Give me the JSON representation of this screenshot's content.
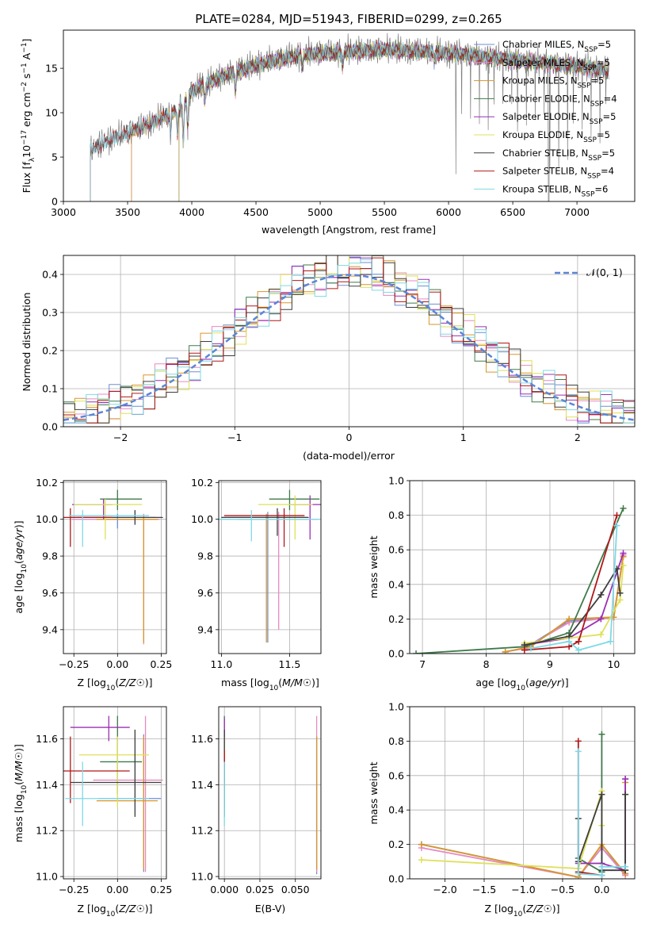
{
  "figure_title": "PLATE=0284, MJD=51943, FIBERID=0299, z=0.265",
  "colors": {
    "Chabrier MILES": "#6b8fd6",
    "Salpeter MILES": "#e58bc0",
    "Kroupa MILES": "#d9962a",
    "Chabrier ELODIE": "#3f7a4a",
    "Salpeter ELODIE": "#9b2fb5",
    "Kroupa ELODIE": "#dfe05a",
    "Chabrier STELIB": "#3d3d3d",
    "Salpeter STELIB": "#b01818",
    "Kroupa STELIB": "#7fd9e6",
    "dashed": "#5b86d8",
    "observed": "#808080",
    "model_orange": "#e07a3a"
  },
  "chart_data": [
    {
      "id": "spectrum",
      "type": "line",
      "title": "PLATE=0284, MJD=51943, FIBERID=0299, z=0.265",
      "xlabel": "wavelength [Angstrom, rest frame]",
      "ylabel": "Flux [fλ10⁻¹⁷ erg cm⁻² s⁻¹ A⁻¹]",
      "xlim": [
        3000,
        7450
      ],
      "ylim": [
        0,
        19.3
      ],
      "xticks": [
        3000,
        3500,
        4000,
        4500,
        5000,
        5500,
        6000,
        6500,
        7000
      ],
      "yticks": [
        0,
        5,
        10,
        15
      ],
      "grid": false,
      "legend_position": "right",
      "legend": [
        "Chabrier MILES, N_SSP=5",
        "Salpeter MILES, N_SSP=5",
        "Kroupa MILES, N_SSP=5",
        "Chabrier ELODIE, N_SSP=4",
        "Salpeter ELODIE, N_SSP=5",
        "Kroupa ELODIE, N_SSP=5",
        "Chabrier STELIB, N_SSP=5",
        "Salpeter STELIB, N_SSP=4",
        "Kroupa STELIB, N_SSP=6"
      ],
      "observed_range": [
        3210,
        7250
      ],
      "continuum": [
        [
          3210,
          5.8
        ],
        [
          3350,
          7.0
        ],
        [
          3500,
          7.8
        ],
        [
          3700,
          9.0
        ],
        [
          3900,
          10.5
        ],
        [
          4000,
          12.5
        ],
        [
          4200,
          14.0
        ],
        [
          4500,
          15.5
        ],
        [
          4800,
          16.5
        ],
        [
          5000,
          16.8
        ],
        [
          5500,
          17.2
        ],
        [
          6000,
          16.8
        ],
        [
          6500,
          16.0
        ],
        [
          7000,
          15.3
        ],
        [
          7250,
          14.8
        ]
      ],
      "model_starts": {
        "MILES": 3530,
        "ELODIE": 3900,
        "STELIB": 3210
      }
    },
    {
      "id": "residuals",
      "type": "histogram",
      "xlabel": "(data-model)/error",
      "ylabel": "Normed distribution",
      "xlim": [
        -2.5,
        2.5
      ],
      "ylim": [
        0,
        0.45
      ],
      "xticks": [
        -2,
        -1,
        0,
        1,
        2
      ],
      "yticks": [
        0.0,
        0.1,
        0.2,
        0.3,
        0.4
      ],
      "grid": true,
      "legend": [
        "𝒩(0, 1)"
      ],
      "legend_position": "top-right",
      "bin_width": 0.1
    },
    {
      "id": "age_vs_Z",
      "type": "errorbar",
      "xlabel": "Z [log₁₀(Z/Z☉)]",
      "ylabel": "age  [log₁₀(age/yr)]",
      "xlim": [
        -0.31,
        0.28
      ],
      "ylim": [
        9.27,
        10.21
      ],
      "xticks": [
        -0.25,
        0.0,
        0.25
      ],
      "xtick_labels": [
        "−0.25",
        "0.00",
        "0.25"
      ],
      "yticks": [
        9.4,
        9.6,
        9.8,
        10.0,
        10.2
      ],
      "grid": true,
      "points": [
        {
          "model": "Chabrier MILES",
          "x": 0.0,
          "xerr": [
            0.23,
            0.22
          ],
          "y": 10.01,
          "yerr": [
            0.06,
            0.02
          ]
        },
        {
          "model": "Salpeter MILES",
          "x": 0.15,
          "xerr": [
            0.41,
            0.09
          ],
          "y": 10.0,
          "yerr": [
            0.68,
            0.03
          ]
        },
        {
          "model": "Kroupa MILES",
          "x": 0.15,
          "xerr": [
            0.27,
            0.08
          ],
          "y": 10.0,
          "yerr": [
            0.67,
            0.02
          ]
        },
        {
          "model": "Chabrier ELODIE",
          "x": 0.0,
          "xerr": [
            0.1,
            0.14
          ],
          "y": 10.11,
          "yerr": [
            0.06,
            0.05
          ]
        },
        {
          "model": "Salpeter ELODIE",
          "x": -0.08,
          "xerr": [
            0.18,
            0.05
          ],
          "y": 10.08,
          "yerr": [
            0.08,
            0.03
          ]
        },
        {
          "model": "Kroupa ELODIE",
          "x": -0.07,
          "xerr": [
            0.18,
            0.21
          ],
          "y": 10.08,
          "yerr": [
            0.19,
            0.03
          ]
        },
        {
          "model": "Chabrier STELIB",
          "x": 0.1,
          "xerr": [
            0.37,
            0.16
          ],
          "y": 10.01,
          "yerr": [
            0.04,
            0.04
          ]
        },
        {
          "model": "Salpeter STELIB",
          "x": -0.27,
          "xerr": [
            0.05,
            0.24
          ],
          "y": 10.01,
          "yerr": [
            0.16,
            0.05
          ]
        },
        {
          "model": "Kroupa STELIB",
          "x": -0.2,
          "xerr": [
            0.08,
            0.38
          ],
          "y": 10.02,
          "yerr": [
            0.17,
            0.03
          ]
        }
      ]
    },
    {
      "id": "age_vs_mass",
      "type": "errorbar",
      "xlabel": "mass [log₁₀(M/M☉)]",
      "ylabel": "",
      "xlim": [
        10.98,
        11.73
      ],
      "ylim": [
        9.27,
        10.21
      ],
      "xticks": [
        11.0,
        11.5
      ],
      "xtick_labels": [
        "11.0",
        "11.5"
      ],
      "yticks": [
        9.4,
        9.6,
        9.8,
        10.0,
        10.2
      ],
      "grid": true,
      "points": [
        {
          "model": "Chabrier MILES",
          "x": 11.34,
          "xerr": [
            0.34,
            0.3
          ],
          "y": 10.01,
          "yerr": [
            0.68,
            0.03
          ]
        },
        {
          "model": "Salpeter MILES",
          "x": 11.42,
          "xerr": [
            0.3,
            0.28
          ],
          "y": 10.0,
          "yerr": [
            0.6,
            0.04
          ]
        },
        {
          "model": "Kroupa MILES",
          "x": 11.33,
          "xerr": [
            0.2,
            0.3
          ],
          "y": 10.0,
          "yerr": [
            0.67,
            0.03
          ]
        },
        {
          "model": "Chabrier ELODIE",
          "x": 11.5,
          "xerr": [
            0.15,
            0.22
          ],
          "y": 10.11,
          "yerr": [
            0.06,
            0.05
          ]
        },
        {
          "model": "Salpeter ELODIE",
          "x": 11.65,
          "xerr": [
            0.14,
            0.08
          ],
          "y": 10.08,
          "yerr": [
            0.19,
            0.05
          ]
        },
        {
          "model": "Kroupa ELODIE",
          "x": 11.54,
          "xerr": [
            0.27,
            0.13
          ],
          "y": 10.08,
          "yerr": [
            0.19,
            0.05
          ]
        },
        {
          "model": "Chabrier STELIB",
          "x": 11.41,
          "xerr": [
            0.41,
            0.23
          ],
          "y": 10.01,
          "yerr": [
            0.1,
            0.05
          ]
        },
        {
          "model": "Salpeter STELIB",
          "x": 11.46,
          "xerr": [
            0.44,
            0.15
          ],
          "y": 10.02,
          "yerr": [
            0.17,
            0.04
          ]
        },
        {
          "model": "Kroupa STELIB",
          "x": 11.22,
          "xerr": [
            0.25,
            0.5
          ],
          "y": 10.0,
          "yerr": [
            0.12,
            0.05
          ]
        }
      ]
    },
    {
      "id": "mass_weight_vs_age",
      "type": "line",
      "xlabel": "age  [log₁₀(age/yr)]",
      "ylabel": "mass weight",
      "xlim": [
        6.8,
        10.33
      ],
      "ylim": [
        0,
        1.0
      ],
      "xticks": [
        7,
        8,
        9,
        10
      ],
      "yticks": [
        0.0,
        0.2,
        0.4,
        0.6,
        0.8,
        1.0
      ],
      "grid": true,
      "series": [
        {
          "model": "Chabrier MILES",
          "x": [
            8.3,
            8.6,
            9.3,
            10.0,
            10.15
          ],
          "y": [
            0.01,
            0.03,
            0.19,
            0.21,
            0.57
          ]
        },
        {
          "model": "Salpeter MILES",
          "x": [
            8.3,
            8.6,
            9.3,
            10.0,
            10.15
          ],
          "y": [
            0.01,
            0.03,
            0.18,
            0.21,
            0.57
          ]
        },
        {
          "model": "Kroupa MILES",
          "x": [
            8.3,
            8.7,
            9.3,
            10.0,
            10.15
          ],
          "y": [
            0.01,
            0.04,
            0.2,
            0.21,
            0.56
          ]
        },
        {
          "model": "Chabrier ELODIE",
          "x": [
            6.9,
            8.6,
            9.3,
            10.15
          ],
          "y": [
            0.0,
            0.04,
            0.12,
            0.84
          ]
        },
        {
          "model": "Salpeter ELODIE",
          "x": [
            8.6,
            9.3,
            9.8,
            10.15
          ],
          "y": [
            0.05,
            0.09,
            0.2,
            0.58
          ]
        },
        {
          "model": "Kroupa ELODIE",
          "x": [
            8.6,
            9.3,
            9.8,
            10.1,
            10.15
          ],
          "y": [
            0.06,
            0.09,
            0.11,
            0.31,
            0.51
          ]
        },
        {
          "model": "Chabrier STELIB",
          "x": [
            8.6,
            9.3,
            9.8,
            10.05,
            10.1
          ],
          "y": [
            0.05,
            0.1,
            0.34,
            0.49,
            0.35
          ]
        },
        {
          "model": "Salpeter STELIB",
          "x": [
            8.6,
            9.3,
            9.45,
            10.05
          ],
          "y": [
            0.02,
            0.04,
            0.07,
            0.8
          ]
        },
        {
          "model": "Kroupa STELIB",
          "x": [
            8.7,
            9.3,
            9.45,
            9.95,
            10.05
          ],
          "y": [
            0.03,
            0.07,
            0.02,
            0.07,
            0.74
          ]
        }
      ]
    },
    {
      "id": "mass_vs_Z",
      "type": "errorbar",
      "xlabel": "Z [log₁₀(Z/Z☉)]",
      "ylabel": "mass [log₁₀(M/M☉)]",
      "xlim": [
        -0.31,
        0.28
      ],
      "ylim": [
        10.99,
        11.74
      ],
      "xticks": [
        -0.25,
        0.0,
        0.25
      ],
      "xtick_labels": [
        "−0.25",
        "0.00",
        "0.25"
      ],
      "yticks": [
        11.0,
        11.2,
        11.4,
        11.6
      ],
      "grid": true,
      "points": [
        {
          "model": "Chabrier MILES",
          "x": 0.15,
          "xerr": [
            0.26,
            0.1
          ],
          "y": 11.34,
          "yerr": [
            0.32,
            0.28
          ]
        },
        {
          "model": "Salpeter MILES",
          "x": 0.16,
          "xerr": [
            0.3,
            0.1
          ],
          "y": 11.42,
          "yerr": [
            0.4,
            0.28
          ]
        },
        {
          "model": "Kroupa MILES",
          "x": 0.15,
          "xerr": [
            0.27,
            0.08
          ],
          "y": 11.33,
          "yerr": [
            0.3,
            0.28
          ]
        },
        {
          "model": "Chabrier ELODIE",
          "x": 0.0,
          "xerr": [
            0.1,
            0.14
          ],
          "y": 11.5,
          "yerr": [
            0.14,
            0.2
          ]
        },
        {
          "model": "Salpeter ELODIE",
          "x": -0.05,
          "xerr": [
            0.22,
            0.12
          ],
          "y": 11.65,
          "yerr": [
            0.06,
            0.05
          ]
        },
        {
          "model": "Kroupa ELODIE",
          "x": 0.0,
          "xerr": [
            0.22,
            0.18
          ],
          "y": 11.53,
          "yerr": [
            0.23,
            0.08
          ]
        },
        {
          "model": "Chabrier STELIB",
          "x": 0.1,
          "xerr": [
            0.37,
            0.15
          ],
          "y": 11.41,
          "yerr": [
            0.15,
            0.23
          ]
        },
        {
          "model": "Salpeter STELIB",
          "x": -0.27,
          "xerr": [
            0.05,
            0.34
          ],
          "y": 11.46,
          "yerr": [
            0.14,
            0.15
          ]
        },
        {
          "model": "Kroupa STELIB",
          "x": -0.2,
          "xerr": [
            0.1,
            0.38
          ],
          "y": 11.34,
          "yerr": [
            0.12,
            0.16
          ]
        }
      ]
    },
    {
      "id": "mass_vs_ebv",
      "type": "errorbar",
      "xlabel": "E(B-V)",
      "ylabel": "",
      "xlim": [
        -0.004,
        0.068
      ],
      "ylim": [
        10.99,
        11.74
      ],
      "xticks": [
        0.0,
        0.025,
        0.05
      ],
      "xtick_labels": [
        "0.000",
        "0.025",
        "0.050"
      ],
      "yticks": [
        11.0,
        11.2,
        11.4,
        11.6
      ],
      "grid": true,
      "points": [
        {
          "model": "Chabrier MILES",
          "x": 0.065,
          "xerr": [
            0,
            0
          ],
          "y": 11.33,
          "yerr": [
            0.32,
            0.28
          ]
        },
        {
          "model": "Salpeter MILES",
          "x": 0.065,
          "xerr": [
            0,
            0
          ],
          "y": 11.42,
          "yerr": [
            0.4,
            0.28
          ]
        },
        {
          "model": "Kroupa MILES",
          "x": 0.065,
          "xerr": [
            0,
            0
          ],
          "y": 11.33,
          "yerr": [
            0.3,
            0.28
          ]
        },
        {
          "model": "Chabrier ELODIE",
          "x": 0.0,
          "xerr": [
            0,
            0
          ],
          "y": 11.5,
          "yerr": [
            0.14,
            0.2
          ]
        },
        {
          "model": "Salpeter ELODIE",
          "x": 0.0,
          "xerr": [
            0,
            0
          ],
          "y": 11.64,
          "yerr": [
            0.06,
            0.05
          ]
        },
        {
          "model": "Kroupa ELODIE",
          "x": 0.0,
          "xerr": [
            0,
            0
          ],
          "y": 11.53,
          "yerr": [
            0.23,
            0.08
          ]
        },
        {
          "model": "Chabrier STELIB",
          "x": 0.0,
          "xerr": [
            0,
            0
          ],
          "y": 11.41,
          "yerr": [
            0.15,
            0.23
          ]
        },
        {
          "model": "Salpeter STELIB",
          "x": 0.0,
          "xerr": [
            0,
            0
          ],
          "y": 11.45,
          "yerr": [
            0.04,
            0.1
          ]
        },
        {
          "model": "Kroupa STELIB",
          "x": 0.0,
          "xerr": [
            0,
            0
          ],
          "y": 11.34,
          "yerr": [
            0.12,
            0.16
          ]
        }
      ]
    },
    {
      "id": "mass_weight_vs_Z",
      "type": "line",
      "xlabel": "Z [log₁₀(Z/Z☉)]",
      "ylabel": "mass weight",
      "xlim": [
        -2.45,
        0.42
      ],
      "ylim": [
        0,
        1.0
      ],
      "xticks": [
        -2.0,
        -1.5,
        -1.0,
        -0.5,
        0.0
      ],
      "xtick_labels": [
        "−2.0",
        "−1.5",
        "−1.0",
        "−0.5",
        "0.0"
      ],
      "yticks": [
        0.0,
        0.2,
        0.4,
        0.6,
        0.8,
        1.0
      ],
      "grid": true,
      "series": [
        {
          "model": "Chabrier MILES",
          "x": [
            -2.3,
            -0.3,
            0.0,
            0.3,
            0.3
          ],
          "y": [
            0.2,
            0.01,
            0.18,
            0.03,
            0.58
          ]
        },
        {
          "model": "Salpeter MILES",
          "x": [
            -2.3,
            -0.3,
            0.0,
            0.3,
            0.3
          ],
          "y": [
            0.18,
            0.01,
            0.18,
            0.02,
            0.58
          ]
        },
        {
          "model": "Kroupa MILES",
          "x": [
            -2.3,
            -0.3,
            0.0,
            0.3,
            0.3
          ],
          "y": [
            0.2,
            0.01,
            0.2,
            0.03,
            0.56
          ]
        },
        {
          "model": "Chabrier ELODIE",
          "x": [
            -0.3,
            0.0,
            0.0,
            0.0
          ],
          "y": [
            0.12,
            0.04,
            0.84,
            0.04
          ]
        },
        {
          "model": "Salpeter ELODIE",
          "x": [
            -0.3,
            0.0,
            0.3,
            0.3
          ],
          "y": [
            0.09,
            0.09,
            0.05,
            0.58
          ]
        },
        {
          "model": "Kroupa ELODIE",
          "x": [
            -2.3,
            -0.3,
            0.0,
            0.0
          ],
          "y": [
            0.11,
            0.06,
            0.51,
            0.31
          ]
        },
        {
          "model": "Chabrier STELIB",
          "x": [
            -0.3,
            -0.3,
            0.0,
            0.0,
            0.3,
            0.3
          ],
          "y": [
            0.35,
            0.1,
            0.49,
            0.05,
            0.05,
            0.49
          ]
        },
        {
          "model": "Salpeter STELIB",
          "x": [
            -0.3,
            -0.3,
            0.0
          ],
          "y": [
            0.8,
            0.04,
            0.02
          ]
        },
        {
          "model": "Kroupa STELIB",
          "x": [
            -0.3,
            -0.3,
            0.0,
            0.0,
            0.3
          ],
          "y": [
            0.74,
            0.03,
            0.02,
            0.07,
            0.07
          ]
        }
      ]
    }
  ]
}
